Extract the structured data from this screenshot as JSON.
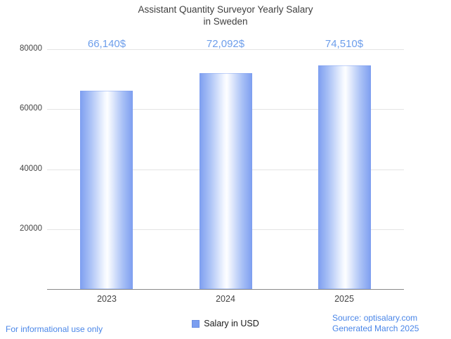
{
  "chart_data": {
    "type": "bar",
    "title_line1": "Assistant Quantity Surveyor Yearly Salary",
    "title_line2": "in Sweden",
    "categories": [
      "2023",
      "2024",
      "2025"
    ],
    "series": [
      {
        "name": "Salary in USD",
        "values": [
          66140,
          72092,
          74510
        ]
      }
    ],
    "value_labels": [
      "66,140$",
      "72,092$",
      "74,510$"
    ],
    "ylim": [
      0,
      80000
    ],
    "yticks": [
      80000,
      60000,
      40000,
      20000
    ],
    "grid": true,
    "legend_label": "Salary in USD",
    "legend_position": "bottom",
    "bar_color_edge": "#7d9ef0",
    "bar_color_center": "#fdfeff",
    "value_label_color": "#6d9eeb"
  },
  "footer": {
    "disclaimer": "For informational use only",
    "source": "Source: optisalary.com",
    "generated": "Generated March 2025"
  },
  "colors": {
    "accent_blue": "#4a86e8",
    "grid": "#e4e4e4",
    "axis": "#8a8a8a",
    "title_text": "#3f3f3f",
    "tick_text": "#444444"
  }
}
